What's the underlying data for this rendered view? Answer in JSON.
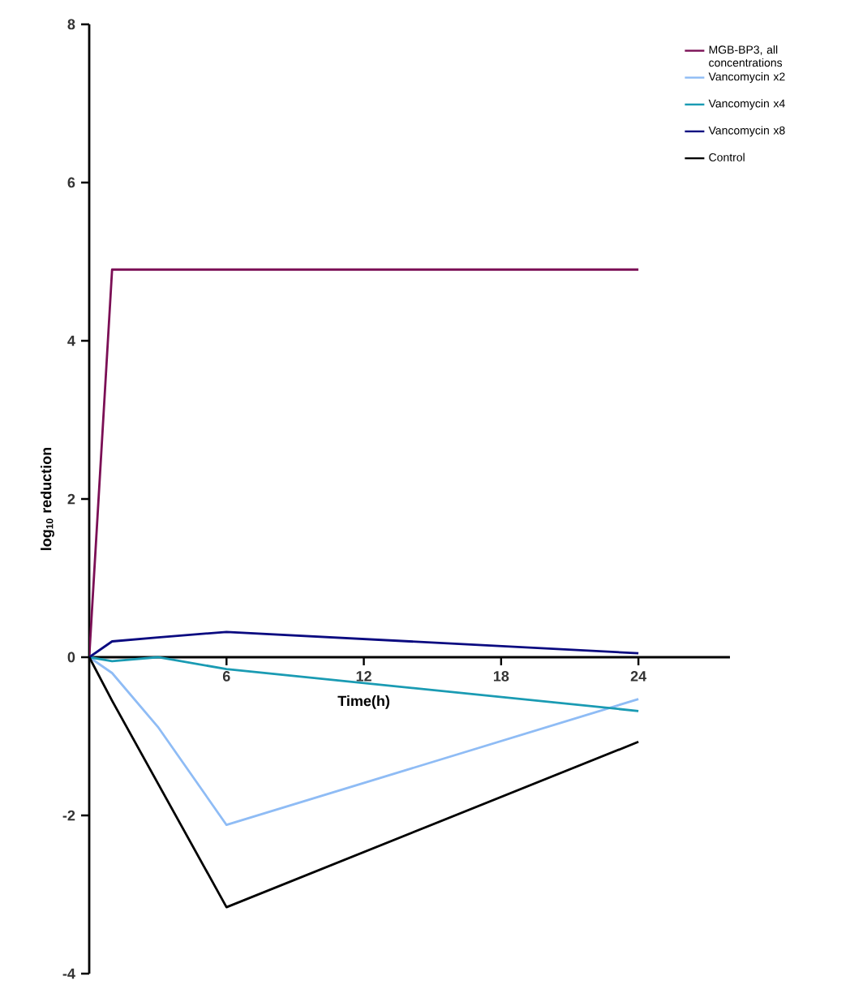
{
  "chart_data": {
    "type": "line",
    "xlabel": "Time(h)",
    "ylabel": "log$_{10}$ reduction",
    "xlim": [
      0,
      28
    ],
    "ylim": [
      -4,
      8
    ],
    "xticks": [
      6,
      12,
      18,
      24
    ],
    "yticks": [
      -4,
      -2,
      0,
      2,
      4,
      6,
      8
    ],
    "grid": false,
    "legend": "top right",
    "marker": "none",
    "line_style": "solid",
    "series": [
      {
        "name": "MGB-BP3, all concentrations",
        "color": "#7b0f55",
        "x": [
          0,
          1,
          3,
          6,
          24
        ],
        "values": [
          0,
          4.9,
          4.9,
          4.9,
          4.9
        ]
      },
      {
        "name": "Vancomycin x2",
        "color": "#8fbcf5",
        "x": [
          0,
          1,
          3,
          6,
          24
        ],
        "values": [
          0,
          -0.2,
          -0.88,
          -2.12,
          -0.53
        ]
      },
      {
        "name": "Vancomycin x4",
        "color": "#1a9bb3",
        "x": [
          0,
          1,
          3,
          6,
          24
        ],
        "values": [
          0,
          -0.05,
          0,
          -0.15,
          -0.68
        ]
      },
      {
        "name": "Vancomycin x8",
        "color": "#0a0a80",
        "x": [
          0,
          1,
          3,
          6,
          24
        ],
        "values": [
          0,
          0.2,
          0.25,
          0.32,
          0.05
        ]
      },
      {
        "name": "Control",
        "color": "#000000",
        "x": [
          0,
          1,
          6,
          24
        ],
        "values": [
          0,
          -0.55,
          -3.16,
          -1.07
        ]
      }
    ]
  }
}
